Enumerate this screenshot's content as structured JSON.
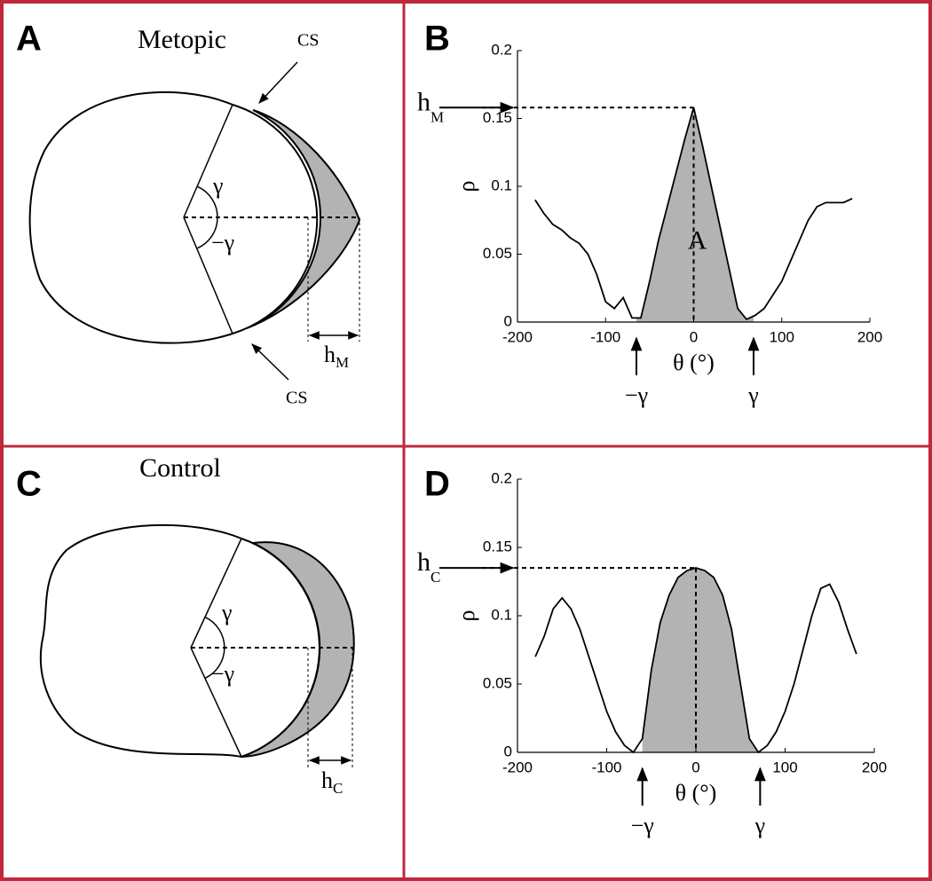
{
  "panels": [
    {
      "letter": "A",
      "title": "Metopic",
      "angle_pos": "γ",
      "angle_neg": "−γ",
      "h_main": "h",
      "h_sub": "M",
      "suture_labels": [
        "CS",
        "CS"
      ]
    },
    {
      "letter": "C",
      "title": "Control",
      "angle_pos": "γ",
      "angle_neg": "−γ",
      "h_main": "h",
      "h_sub": "C"
    }
  ],
  "chart_data": [
    {
      "type": "line",
      "panel_letter": "B",
      "x": [
        -180,
        -170,
        -160,
        -150,
        -140,
        -130,
        -120,
        -110,
        -100,
        -90,
        -80,
        -70,
        -60,
        -50,
        -40,
        -30,
        -20,
        -10,
        0,
        10,
        20,
        30,
        40,
        50,
        60,
        70,
        80,
        90,
        100,
        110,
        120,
        130,
        140,
        150,
        160,
        170,
        180
      ],
      "values": [
        0.09,
        0.08,
        0.072,
        0.068,
        0.062,
        0.058,
        0.05,
        0.035,
        0.015,
        0.01,
        0.018,
        0.003,
        0.003,
        0.03,
        0.06,
        0.085,
        0.11,
        0.135,
        0.158,
        0.13,
        0.1,
        0.07,
        0.04,
        0.01,
        0.002,
        0.005,
        0.01,
        0.02,
        0.03,
        0.045,
        0.06,
        0.075,
        0.085,
        0.088,
        0.088,
        0.088,
        0.091
      ],
      "color": "#000000",
      "fill_color": "#b3b3b3",
      "shaded_range": [
        -65,
        68
      ],
      "xlim": [
        -200,
        200
      ],
      "ylim": [
        0,
        0.2
      ],
      "xticks": [
        -200,
        -100,
        0,
        100,
        200
      ],
      "yticks": [
        0,
        0.05,
        0.1,
        0.15,
        0.2
      ],
      "xlabel": "θ (°)",
      "ylabel": "ρ",
      "annotations": {
        "peak_label_main": "h",
        "peak_label_sub": "M",
        "area_label": "A",
        "neg_gamma": "−γ",
        "gamma": "γ"
      }
    },
    {
      "type": "line",
      "panel_letter": "D",
      "x": [
        -180,
        -170,
        -160,
        -150,
        -140,
        -130,
        -120,
        -110,
        -100,
        -90,
        -80,
        -70,
        -60,
        -50,
        -40,
        -30,
        -20,
        -10,
        0,
        10,
        20,
        30,
        40,
        50,
        60,
        70,
        80,
        90,
        100,
        110,
        120,
        130,
        140,
        150,
        160,
        170,
        180
      ],
      "values": [
        0.07,
        0.085,
        0.105,
        0.113,
        0.105,
        0.09,
        0.07,
        0.05,
        0.03,
        0.015,
        0.005,
        0.0,
        0.01,
        0.06,
        0.095,
        0.115,
        0.128,
        0.133,
        0.135,
        0.133,
        0.128,
        0.115,
        0.09,
        0.05,
        0.01,
        0.0,
        0.005,
        0.015,
        0.03,
        0.05,
        0.075,
        0.1,
        0.12,
        0.123,
        0.11,
        0.09,
        0.072
      ],
      "color": "#000000",
      "fill_color": "#b3b3b3",
      "shaded_range": [
        -60,
        72
      ],
      "xlim": [
        -200,
        200
      ],
      "ylim": [
        0,
        0.2
      ],
      "xticks": [
        -200,
        -100,
        0,
        100,
        200
      ],
      "yticks": [
        0,
        0.05,
        0.1,
        0.15,
        0.2
      ],
      "xlabel": "θ (°)",
      "ylabel": "ρ",
      "annotations": {
        "peak_label_main": "h",
        "peak_label_sub": "C",
        "neg_gamma": "−γ",
        "gamma": "γ"
      }
    }
  ]
}
